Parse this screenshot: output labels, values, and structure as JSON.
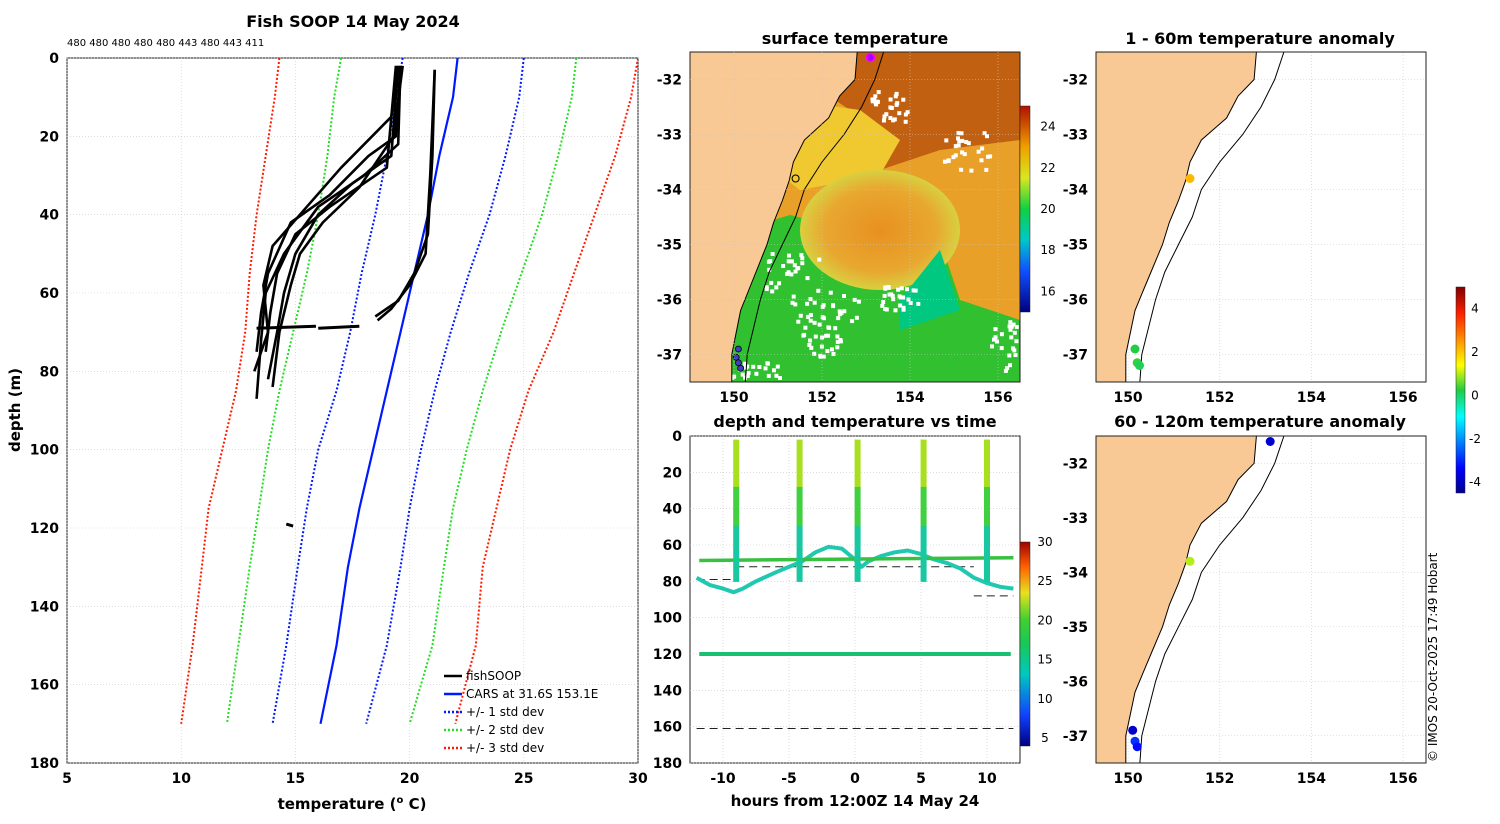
{
  "colors": {
    "land": "#f8c895",
    "fish": "#000000",
    "cars": "#0018ff",
    "std1": "#0018ff",
    "std2": "#22dd22",
    "std3": "#ff1a00",
    "grid": "#c8c8c8",
    "coast": "#000000"
  },
  "profile_panel": {
    "title": "Fish SOOP 14 May 2024",
    "top_label": "480 480 480 480 480 443 480 443 411",
    "xlabel": "temperature (o C)",
    "xlabel_main": "temperature (",
    "xlabel_sup": "o",
    "xlabel_end": " C)",
    "ylabel": "depth (m)",
    "xticks": [
      "5",
      "10",
      "15",
      "20",
      "25",
      "30"
    ],
    "yticks": [
      "0",
      "20",
      "40",
      "60",
      "80",
      "100",
      "120",
      "140",
      "160",
      "180"
    ],
    "legend": [
      "fishSOOP",
      "CARS at 31.6S 153.1E",
      "+/- 1 std dev",
      "+/- 2 std dev",
      "+/- 3 std dev"
    ]
  },
  "sst_panel": {
    "title": "surface temperature",
    "xticks": [
      "150",
      "152",
      "154",
      "156"
    ],
    "yticks": [
      "-32",
      "-33",
      "-34",
      "-35",
      "-36",
      "-37"
    ],
    "cbar_ticks": [
      "24",
      "22",
      "20",
      "18",
      "16"
    ]
  },
  "time_panel": {
    "title": "depth and temperature vs time",
    "xlabel": "hours from 12:00Z 14 May 24",
    "xticks": [
      "-10",
      "-5",
      "0",
      "5",
      "10"
    ],
    "yticks": [
      "0",
      "20",
      "40",
      "60",
      "80",
      "100",
      "120",
      "140",
      "160",
      "180"
    ],
    "cbar_ticks": [
      "30",
      "25",
      "20",
      "15",
      "10",
      "5"
    ]
  },
  "anom1_panel": {
    "title": "1 - 60m temperature anomaly",
    "xticks": [
      "150",
      "152",
      "154",
      "156"
    ],
    "yticks": [
      "-32",
      "-33",
      "-34",
      "-35",
      "-36",
      "-37"
    ]
  },
  "anom2_panel": {
    "title": "60 - 120m temperature anomaly",
    "xticks": [
      "150",
      "152",
      "154",
      "156"
    ],
    "yticks": [
      "-32",
      "-33",
      "-34",
      "-35",
      "-36",
      "-37"
    ]
  },
  "anom_cbar": {
    "ticks": [
      "4",
      "2",
      "0",
      "-2",
      "-4"
    ]
  },
  "credit": "© IMOS 20-Oct-2025 17:49 Hobart",
  "chart_data": [
    {
      "type": "line",
      "title": "Fish SOOP 14 May 2024",
      "xlabel": "temperature (o C)",
      "ylabel": "depth (m)",
      "xlim": [
        5,
        30
      ],
      "ylim": [
        180,
        0
      ],
      "series": [
        {
          "name": "CARS at 31.6S 153.1E",
          "temp": [
            22.1,
            21.9,
            21.3,
            20.8,
            20.2,
            19.6,
            19.0,
            18.4,
            17.8,
            17.3,
            16.8,
            16.1
          ],
          "depth": [
            0,
            10,
            25,
            40,
            55,
            70,
            85,
            100,
            115,
            130,
            150,
            170
          ]
        },
        {
          "name": "CARS -1 std",
          "temp": [
            19.7,
            19.4,
            19.0,
            18.5,
            17.9,
            17.4,
            16.8,
            16.0,
            15.5,
            15.1,
            14.6,
            14.0
          ],
          "depth": [
            0,
            10,
            25,
            40,
            55,
            70,
            85,
            100,
            115,
            130,
            150,
            170
          ]
        },
        {
          "name": "CARS +1 std",
          "temp": [
            25.0,
            24.8,
            24.2,
            23.5,
            22.6,
            21.8,
            21.1,
            20.5,
            20.0,
            19.6,
            19.0,
            18.1
          ],
          "depth": [
            0,
            10,
            25,
            40,
            55,
            70,
            85,
            100,
            115,
            130,
            150,
            170
          ]
        },
        {
          "name": "CARS -2 std",
          "temp": [
            17.0,
            16.7,
            16.4,
            16.0,
            15.5,
            14.9,
            14.3,
            13.8,
            13.4,
            13.0,
            12.5,
            12.0
          ],
          "depth": [
            0,
            10,
            25,
            40,
            55,
            70,
            85,
            100,
            115,
            130,
            150,
            170
          ]
        },
        {
          "name": "CARS +2 std",
          "temp": [
            27.3,
            27.1,
            26.5,
            25.8,
            24.9,
            24.0,
            23.2,
            22.5,
            21.9,
            21.5,
            21.0,
            20.0
          ],
          "depth": [
            0,
            10,
            25,
            40,
            55,
            70,
            85,
            100,
            115,
            130,
            150,
            170
          ]
        },
        {
          "name": "CARS -3 std",
          "temp": [
            14.3,
            14.1,
            13.7,
            13.3,
            13.0,
            12.8,
            12.4,
            11.8,
            11.2,
            10.9,
            10.5,
            10.0
          ],
          "depth": [
            0,
            10,
            25,
            40,
            55,
            70,
            85,
            100,
            115,
            130,
            150,
            170
          ]
        },
        {
          "name": "CARS +3 std",
          "temp": [
            30.0,
            29.7,
            29.0,
            28.1,
            27.2,
            26.3,
            25.2,
            24.4,
            23.8,
            23.2,
            22.9,
            22.0
          ],
          "depth": [
            0,
            10,
            25,
            40,
            55,
            70,
            85,
            100,
            115,
            130,
            150,
            170
          ]
        },
        {
          "name": "fishSOOP profile 1",
          "temp": [
            19.6,
            19.4,
            18.2,
            16.5,
            14.8,
            13.8,
            13.5,
            13.3
          ],
          "depth": [
            2,
            20,
            25,
            35,
            42,
            55,
            65,
            75
          ]
        },
        {
          "name": "fishSOOP profile 2",
          "temp": [
            19.5,
            19.2,
            17.0,
            15.5,
            14.0,
            13.6,
            13.8,
            13.2
          ],
          "depth": [
            2,
            15,
            28,
            38,
            48,
            58,
            70,
            80
          ]
        },
        {
          "name": "fishSOOP profile 3",
          "temp": [
            19.6,
            19.5,
            18.0,
            16.0,
            14.5,
            13.7,
            13.5,
            13.3
          ],
          "depth": [
            2,
            22,
            30,
            38,
            50,
            60,
            72,
            87
          ]
        },
        {
          "name": "fishSOOP profile 4",
          "temp": [
            19.5,
            19.2,
            17.5,
            16.0,
            15.0,
            14.5,
            14.2,
            13.8
          ],
          "depth": [
            2,
            25,
            32,
            40,
            50,
            60,
            70,
            82
          ]
        },
        {
          "name": "fishSOOP profile 5",
          "temp": [
            19.4,
            19.0,
            16.5,
            15.0,
            14.2,
            13.9,
            13.7
          ],
          "depth": [
            2,
            28,
            38,
            45,
            55,
            65,
            75
          ]
        },
        {
          "name": "fishSOOP profile 6",
          "temp": [
            19.7,
            19.3,
            17.8,
            16.2,
            15.2,
            14.8,
            14.3,
            14.0
          ],
          "depth": [
            2,
            20,
            33,
            42,
            50,
            58,
            70,
            84
          ]
        },
        {
          "name": "fishSOOP profile 7",
          "temp": [
            21.1,
            21.0,
            20.8,
            20.2,
            19.5,
            18.5
          ],
          "depth": [
            3,
            25,
            45,
            55,
            62,
            66
          ]
        },
        {
          "name": "fishSOOP profile 8",
          "temp": [
            21.1,
            20.9,
            20.7,
            20.0,
            19.2,
            18.6
          ],
          "depth": [
            3,
            30,
            50,
            58,
            64,
            67
          ]
        }
      ]
    },
    {
      "type": "heatmap",
      "title": "surface temperature",
      "xlim": [
        149,
        156.5
      ],
      "ylim": [
        -37.5,
        -31.5
      ],
      "colorbar_range": [
        15,
        25
      ]
    },
    {
      "type": "scatter",
      "title": "depth and temperature vs time",
      "xlabel": "hours from 12:00Z 14 May 24",
      "ylabel": "depth (m)",
      "xlim": [
        -12.5,
        12.5
      ],
      "ylim": [
        180,
        0
      ],
      "colorbar_range": [
        4,
        30
      ],
      "dive_times": [
        -9,
        -4.2,
        0.2,
        5.2,
        10
      ],
      "dashed_depths": [
        [
          -12,
          -9,
          79
        ],
        [
          -9,
          9,
          72
        ],
        [
          9,
          12,
          88
        ],
        [
          -12,
          12,
          161
        ]
      ]
    },
    {
      "type": "scatter",
      "title": "1 - 60m temperature anomaly",
      "xlim": [
        149.3,
        156.5
      ],
      "ylim": [
        -37.5,
        -31.5
      ],
      "points": [
        [
          151.35,
          -33.8,
          2.5
        ],
        [
          150.15,
          -36.9,
          0.5
        ],
        [
          150.2,
          -37.15,
          0.6
        ],
        [
          150.25,
          -37.2,
          0.4
        ]
      ]
    },
    {
      "type": "scatter",
      "title": "60 - 120m temperature anomaly",
      "xlim": [
        149.3,
        156.5
      ],
      "ylim": [
        -37.5,
        -31.5
      ],
      "points": [
        [
          153.1,
          -31.6,
          -3.8
        ],
        [
          151.35,
          -33.8,
          1.3
        ],
        [
          150.1,
          -36.9,
          -3.9
        ],
        [
          150.15,
          -37.1,
          -2.8
        ],
        [
          150.2,
          -37.2,
          -3.2
        ]
      ]
    }
  ]
}
